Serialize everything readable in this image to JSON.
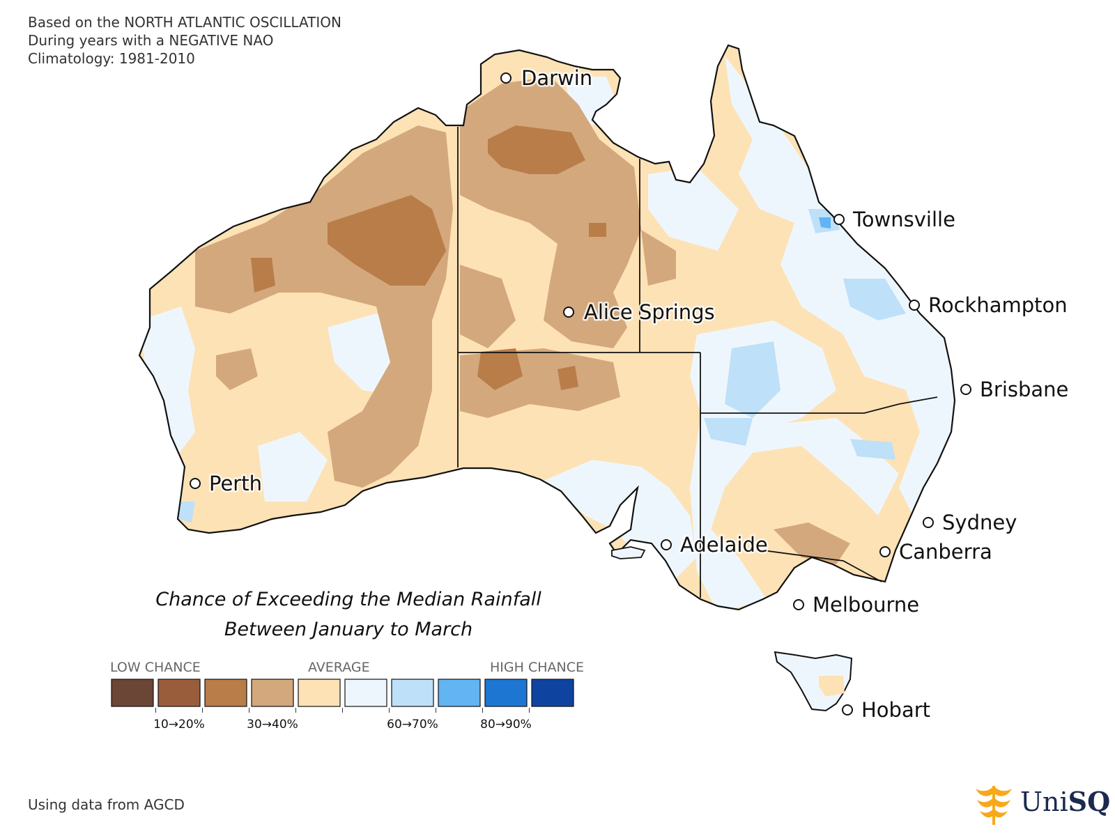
{
  "header": {
    "line1": "Based on the NORTH ATLANTIC OSCILLATION",
    "line2": "During years with a NEGATIVE NAO",
    "line3": "Climatology: 1981-2010"
  },
  "title": {
    "line1": "Chance of Exceeding the Median Rainfall",
    "line2": "Between January to March"
  },
  "legend": {
    "label_low": "LOW CHANCE",
    "label_average": "AVERAGE",
    "label_high": "HIGH CHANCE",
    "tick_labels": [
      "10→20%",
      "30→40%",
      "60→70%",
      "80→90%"
    ],
    "colors": [
      "#6b4536",
      "#9a5d3b",
      "#b87d48",
      "#d3a87c",
      "#fde2b6",
      "#eef6fd",
      "#bee0f8",
      "#63b4f2",
      "#1e76d3",
      "#0e44a0"
    ]
  },
  "colors": {
    "land_average": "#fde2b6",
    "land_above": "#eef6fd",
    "land_below": "#d3a87c",
    "land_low": "#b87d48",
    "land_high": "#bee0f8",
    "land_higher": "#63b4f2",
    "border": "#111111"
  },
  "cities": [
    {
      "name": "Darwin"
    },
    {
      "name": "Townsville"
    },
    {
      "name": "Rockhampton"
    },
    {
      "name": "Alice Springs"
    },
    {
      "name": "Brisbane"
    },
    {
      "name": "Perth"
    },
    {
      "name": "Sydney"
    },
    {
      "name": "Adelaide"
    },
    {
      "name": "Canberra"
    },
    {
      "name": "Melbourne"
    },
    {
      "name": "Hobart"
    }
  ],
  "footer": {
    "source": "Using data from AGCD",
    "logo_light": "Uni",
    "logo_bold": "SQ",
    "logo_color": "#f7a81b"
  }
}
